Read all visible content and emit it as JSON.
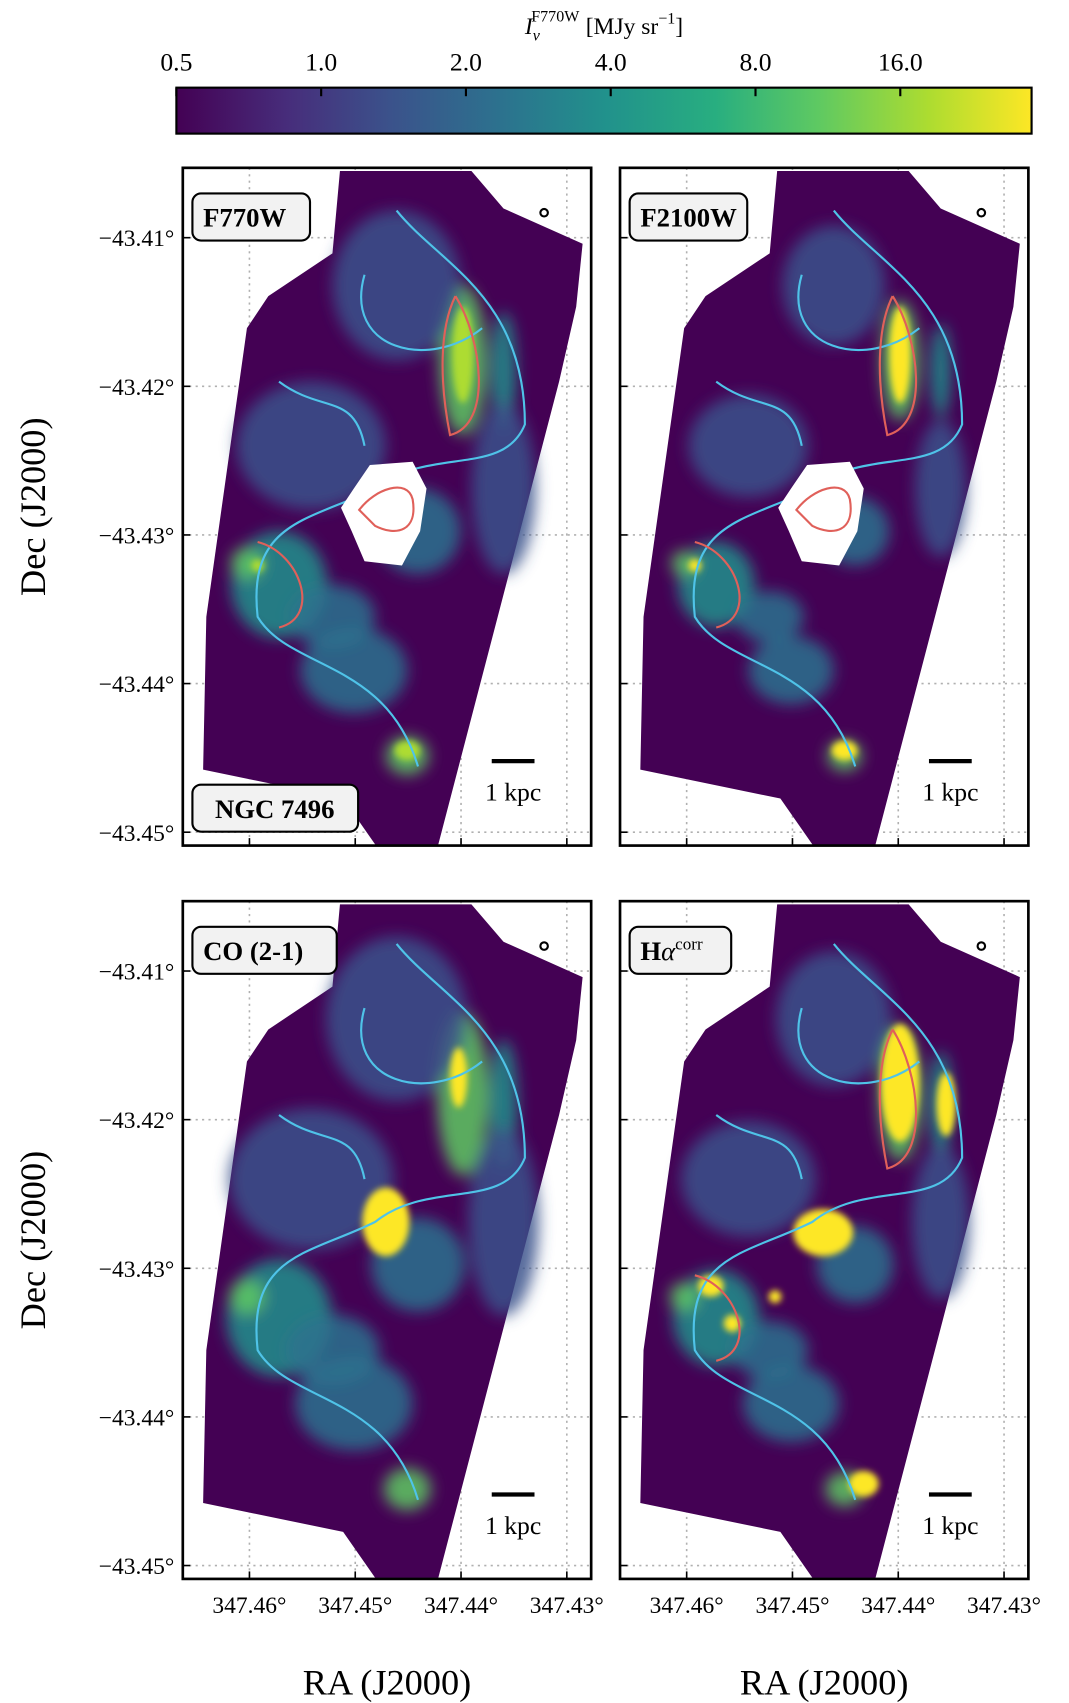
{
  "chart_data": {
    "colorbar": {
      "type": "colorbar",
      "label": {
        "base": "I",
        "sub": "ν",
        "sup": "F770W",
        "unit": "[MJy sr",
        "unit_sup": "−1",
        "close": "]"
      },
      "xlim": [
        0.5,
        30
      ],
      "log_scale": true,
      "colormap": "viridis",
      "xticks": [
        0.5,
        {
          "value": 1,
          "label": "1.0"
        },
        {
          "value": 2,
          "label": "2.0"
        },
        {
          "value": 4,
          "label": "4.0"
        },
        {
          "value": 8,
          "label": "8.0"
        },
        {
          "value": 16,
          "label": "16.0"
        }
      ]
    },
    "axes": {
      "xlabel": "RA (J2000)",
      "ylabel": "Dec (J2000)",
      "xlim": [
        347.4663,
        347.4277
      ],
      "ylim": [
        -43.4509,
        -43.4053
      ],
      "grid": true,
      "xticks": [
        {
          "value": 347.46,
          "label": "347.46°"
        },
        {
          "value": 347.45,
          "label": "347.45°"
        },
        {
          "value": 347.44,
          "label": "347.44°"
        },
        {
          "value": 347.43,
          "label": "347.43°"
        }
      ],
      "yticks": [
        {
          "value": -43.41,
          "label": "−43.41°"
        },
        {
          "value": -43.42,
          "label": "−43.42°"
        },
        {
          "value": -43.43,
          "label": "−43.43°"
        },
        {
          "value": -43.44,
          "label": "−43.44°"
        },
        {
          "value": -43.45,
          "label": "−43.45°"
        }
      ]
    },
    "galaxy": "NGC 7496",
    "panels": [
      {
        "type": "image",
        "title": "F770W",
        "scale_bar": "1 kpc"
      },
      {
        "type": "image",
        "title": "F2100W",
        "scale_bar": "1 kpc"
      },
      {
        "type": "image",
        "title": "CO (2-1)",
        "scale_bar": "1 kpc"
      },
      {
        "type": "image",
        "title": "H",
        "title_sym": "α",
        "title_sup": "corr",
        "scale_bar": "1 kpc"
      }
    ]
  }
}
